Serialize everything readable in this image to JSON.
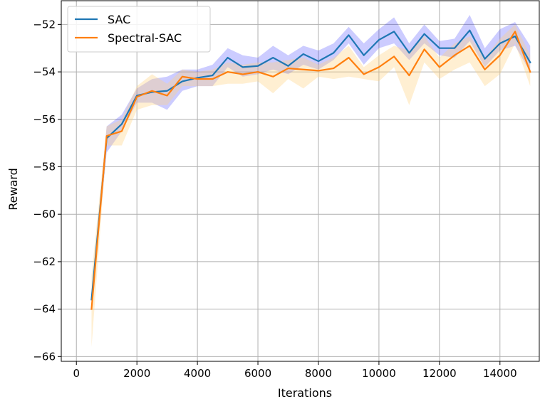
{
  "chart_data": {
    "type": "line",
    "xlabel": "Iterations",
    "ylabel": "Reward",
    "xlim": [
      -500,
      15300
    ],
    "ylim": [
      -66.2,
      -51.0
    ],
    "xticks": [
      0,
      2000,
      4000,
      6000,
      8000,
      10000,
      12000,
      14000
    ],
    "yticks": [
      -66,
      -64,
      -62,
      -60,
      -58,
      -56,
      -54,
      -52
    ],
    "xtick_labels": [
      "0",
      "2000",
      "4000",
      "6000",
      "8000",
      "10000",
      "12000",
      "14000"
    ],
    "ytick_labels": [
      "−66",
      "−64",
      "−62",
      "−60",
      "−58",
      "−56",
      "−54",
      "−52"
    ],
    "grid": true,
    "legend_position": "top-left",
    "x": [
      500,
      1000,
      1500,
      2000,
      2500,
      3000,
      3500,
      4000,
      4500,
      5000,
      5500,
      6000,
      6500,
      7000,
      7500,
      8000,
      8500,
      9000,
      9500,
      10000,
      10500,
      11000,
      11500,
      12000,
      12500,
      13000,
      13500,
      14000,
      14500,
      15000
    ],
    "series": [
      {
        "name": "SAC",
        "color": "#1f77b4",
        "band_color": "#0000ff",
        "values": [
          -63.6,
          -56.8,
          -56.2,
          -55.0,
          -54.85,
          -54.8,
          -54.4,
          -54.25,
          -54.15,
          -53.4,
          -53.8,
          -53.75,
          -53.4,
          -53.75,
          -53.25,
          -53.55,
          -53.2,
          -52.45,
          -53.3,
          -52.65,
          -52.3,
          -53.2,
          -52.4,
          -53.0,
          -53.0,
          -52.25,
          -53.45,
          -52.8,
          -52.5,
          -53.6
        ],
        "lower": [
          -63.9,
          -57.4,
          -56.5,
          -55.3,
          -55.3,
          -55.6,
          -54.8,
          -54.6,
          -54.6,
          -53.8,
          -54.2,
          -54.1,
          -53.9,
          -54.1,
          -53.7,
          -53.9,
          -53.5,
          -52.8,
          -53.7,
          -53.0,
          -52.8,
          -53.5,
          -52.8,
          -53.3,
          -53.4,
          -52.7,
          -53.8,
          -53.1,
          -52.9,
          -54.0
        ],
        "upper": [
          -63.3,
          -56.3,
          -55.8,
          -54.7,
          -54.3,
          -54.2,
          -53.9,
          -53.9,
          -53.7,
          -53.0,
          -53.3,
          -53.4,
          -52.9,
          -53.3,
          -52.9,
          -53.1,
          -52.8,
          -52.1,
          -52.8,
          -52.2,
          -51.7,
          -52.8,
          -52.0,
          -52.7,
          -52.6,
          -51.6,
          -53.0,
          -52.2,
          -51.9,
          -52.9
        ]
      },
      {
        "name": "Spectral-SAC",
        "color": "#ff7f0e",
        "band_color": "#ffd27f",
        "values": [
          -64.0,
          -56.7,
          -56.5,
          -55.05,
          -54.8,
          -55.0,
          -54.2,
          -54.3,
          -54.3,
          -54.0,
          -54.1,
          -54.0,
          -54.2,
          -53.85,
          -53.9,
          -53.95,
          -53.85,
          -53.4,
          -54.1,
          -53.8,
          -53.35,
          -54.15,
          -53.05,
          -53.8,
          -53.3,
          -52.9,
          -53.9,
          -53.3,
          -52.3,
          -54.0
        ],
        "lower": [
          -65.6,
          -57.1,
          -57.1,
          -55.6,
          -55.4,
          -55.4,
          -54.6,
          -54.6,
          -54.6,
          -54.5,
          -54.5,
          -54.4,
          -54.9,
          -54.3,
          -54.7,
          -54.2,
          -54.3,
          -54.2,
          -54.3,
          -54.4,
          -53.8,
          -55.4,
          -53.6,
          -54.3,
          -53.9,
          -53.6,
          -54.6,
          -54.1,
          -52.8,
          -54.6
        ],
        "upper": [
          -62.6,
          -56.3,
          -56.0,
          -54.6,
          -54.1,
          -54.5,
          -53.9,
          -54.0,
          -53.9,
          -53.6,
          -53.7,
          -53.6,
          -53.6,
          -53.5,
          -53.4,
          -53.7,
          -53.4,
          -52.9,
          -53.8,
          -53.3,
          -52.9,
          -53.1,
          -52.5,
          -53.4,
          -52.8,
          -52.5,
          -53.4,
          -52.6,
          -52.0,
          -53.3
        ]
      }
    ]
  }
}
